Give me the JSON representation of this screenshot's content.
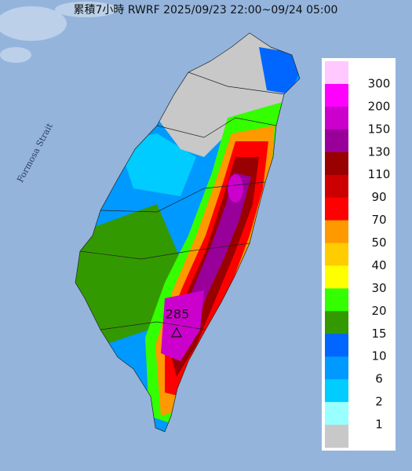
{
  "header": {
    "title": "累積7小時 RWRF 2025/09/23 22:00~09/24 05:00"
  },
  "map": {
    "strait_label": "Formosa Strait",
    "max_label": "285"
  },
  "legend": {
    "labels": [
      300,
      200,
      150,
      130,
      110,
      90,
      70,
      50,
      40,
      30,
      20,
      15,
      10,
      6,
      2,
      1
    ],
    "colors": [
      "#ffc8ff",
      "#ff00ff",
      "#cc00cc",
      "#990099",
      "#990000",
      "#cc0000",
      "#ff0000",
      "#ff9900",
      "#ffcc00",
      "#ffff00",
      "#33ff00",
      "#339900",
      "#0066ff",
      "#0099ff",
      "#00ccff",
      "#99ffff",
      "#c8c8c8"
    ]
  }
}
